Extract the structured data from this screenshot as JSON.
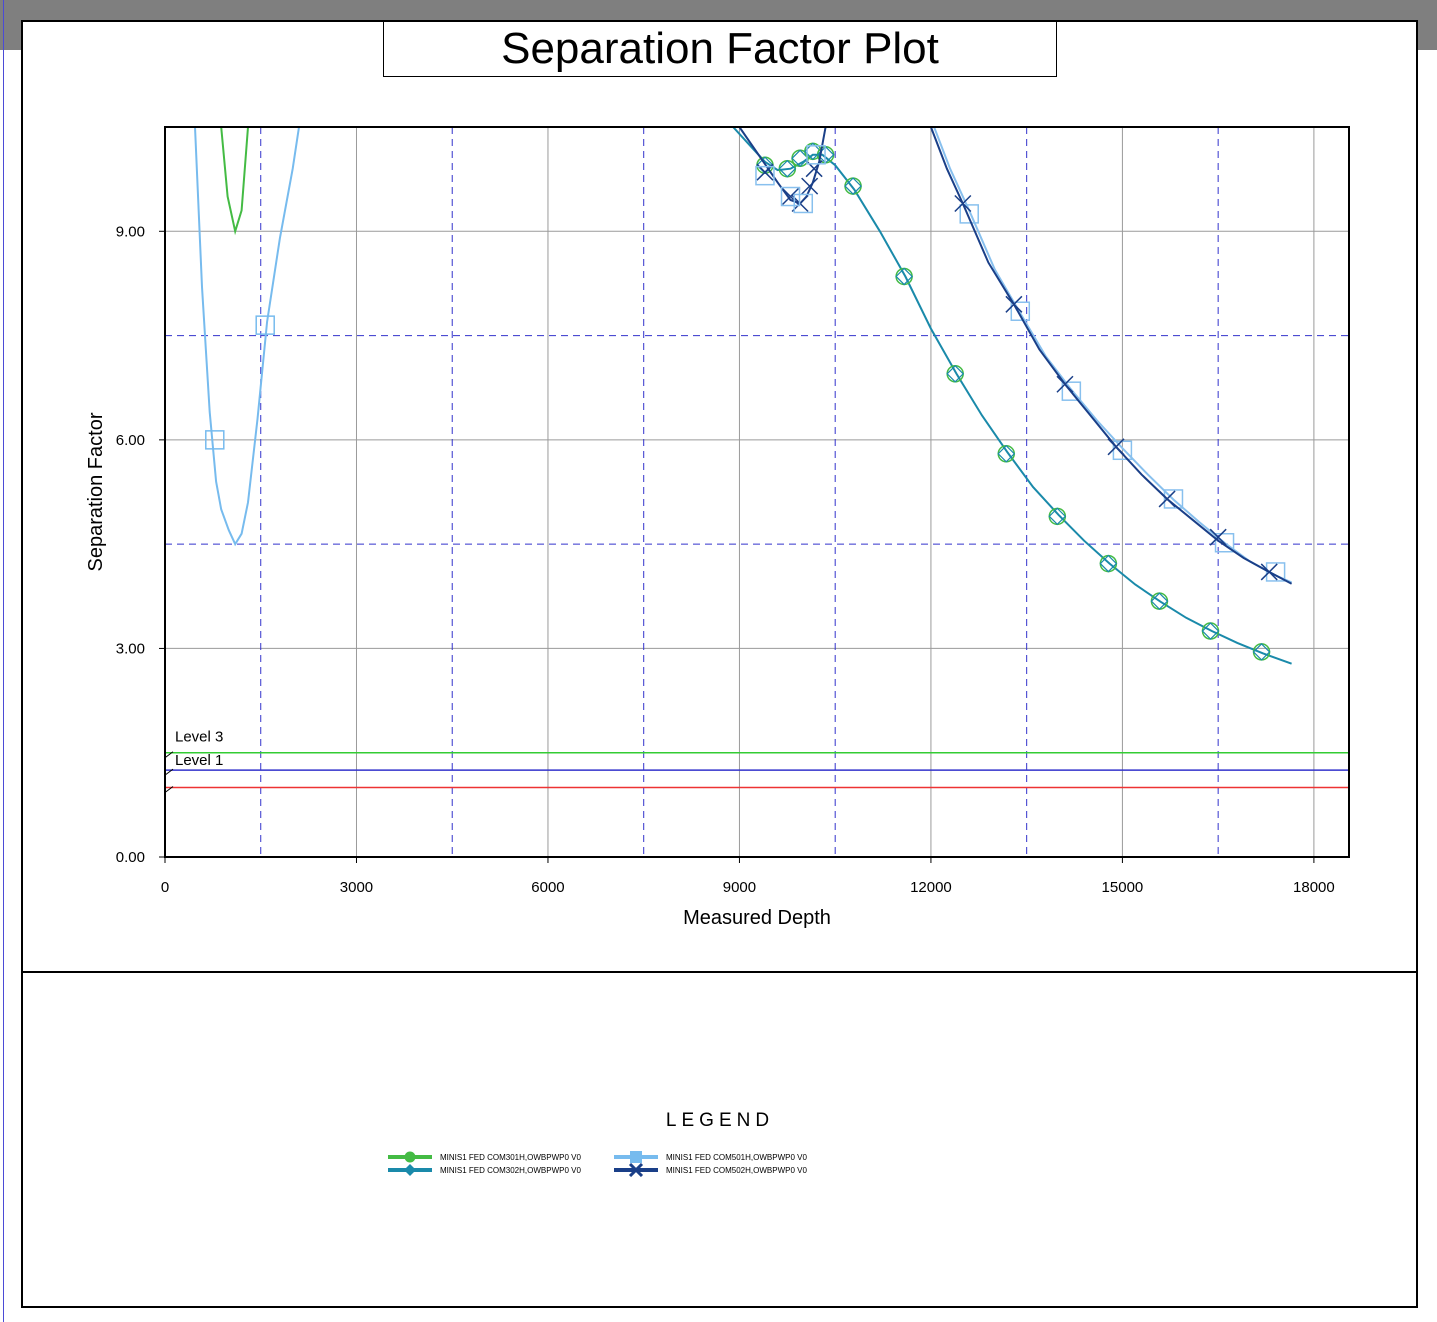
{
  "title": "Separation Factor Plot",
  "colors": {
    "grid_solid": "#9a9a9a",
    "grid_dashed": "#3333cc",
    "axis": "#000000",
    "level3": "#33cc33",
    "level1": "#3333cc",
    "level_red": "#ee3333"
  },
  "chart_data": {
    "type": "line",
    "title": "Separation Factor Plot",
    "xlabel": "Measured Depth",
    "ylabel": "Separation Factor",
    "xlim": [
      0,
      18550
    ],
    "ylim": [
      0,
      10.5
    ],
    "x_ticks": [
      0,
      3000,
      6000,
      9000,
      12000,
      15000,
      18000
    ],
    "x_tick_labels": [
      "0",
      "3000",
      "6000",
      "9000",
      "12000",
      "15000",
      "18000"
    ],
    "y_ticks": [
      0,
      3,
      6,
      9
    ],
    "y_tick_labels": [
      "0.00",
      "3.00",
      "6.00",
      "9.00"
    ],
    "grid": true,
    "dashed_x": [
      1500,
      4500,
      7500,
      10500,
      13500,
      16500
    ],
    "dashed_y": [
      4.5,
      7.5
    ],
    "levels": [
      {
        "name": "Level 3",
        "value": 1.5,
        "color": "#33cc33"
      },
      {
        "name": "Level 1",
        "value": 1.25,
        "color": "#3333cc"
      },
      {
        "name": "",
        "value": 1.0,
        "color": "#ee3333"
      }
    ],
    "series": [
      {
        "name": "MINIS1 FED COM301H,OWBPWP0 V0",
        "color": "#44bb44",
        "marker": "circle",
        "points": [
          [
            880,
            10.5
          ],
          [
            980,
            9.5
          ],
          [
            1100,
            9.0
          ],
          [
            1200,
            9.3
          ],
          [
            1300,
            10.5
          ]
        ],
        "markers": []
      },
      {
        "name": "MINIS1 FED COM501H,OWBPWP0 V0",
        "color": "#77bbee",
        "marker": "square",
        "points": [
          [
            470,
            10.5
          ],
          [
            580,
            8.2
          ],
          [
            700,
            6.4
          ],
          [
            800,
            5.4
          ],
          [
            880,
            5.0
          ],
          [
            1000,
            4.7
          ],
          [
            1100,
            4.5
          ],
          [
            1200,
            4.65
          ],
          [
            1300,
            5.1
          ],
          [
            1450,
            6.3
          ],
          [
            1600,
            7.7
          ],
          [
            1800,
            8.9
          ],
          [
            2000,
            9.9
          ],
          [
            2100,
            10.5
          ]
        ],
        "markers": [
          [
            780,
            6.0
          ],
          [
            1570,
            7.65
          ]
        ]
      },
      {
        "name": "MINIS1 FED COM302H,OWBPWP0 V0",
        "color": "#1a8aaa",
        "marker": "diamond",
        "points": [
          [
            8900,
            10.5
          ],
          [
            9200,
            10.2
          ],
          [
            9400,
            10.0
          ],
          [
            9600,
            9.88
          ],
          [
            9800,
            9.9
          ],
          [
            10000,
            10.0
          ],
          [
            10150,
            10.1
          ],
          [
            10300,
            10.1
          ],
          [
            10500,
            9.95
          ],
          [
            10800,
            9.6
          ],
          [
            11200,
            9.0
          ],
          [
            11600,
            8.35
          ],
          [
            12000,
            7.6
          ],
          [
            12400,
            6.95
          ],
          [
            12800,
            6.35
          ],
          [
            13200,
            5.82
          ],
          [
            13600,
            5.32
          ],
          [
            14000,
            4.92
          ],
          [
            14400,
            4.55
          ],
          [
            14800,
            4.22
          ],
          [
            15200,
            3.92
          ],
          [
            15600,
            3.67
          ],
          [
            16000,
            3.44
          ],
          [
            16400,
            3.25
          ],
          [
            16800,
            3.08
          ],
          [
            17200,
            2.93
          ],
          [
            17650,
            2.78
          ]
        ],
        "markers": [
          [
            9400,
            9.95
          ],
          [
            9750,
            9.9
          ],
          [
            9950,
            10.05
          ],
          [
            10150,
            10.15
          ],
          [
            10350,
            10.1
          ],
          [
            10780,
            9.65
          ],
          [
            11580,
            8.35
          ],
          [
            12380,
            6.95
          ],
          [
            13180,
            5.8
          ],
          [
            13980,
            4.9
          ],
          [
            14780,
            4.22
          ],
          [
            15580,
            3.68
          ],
          [
            16380,
            3.25
          ],
          [
            17180,
            2.95
          ]
        ]
      },
      {
        "name": "MINIS1 FED COM502H,OWBPWP0 V0",
        "color": "#1a3f88",
        "marker": "x",
        "points": [
          [
            9000,
            10.5
          ],
          [
            9300,
            10.1
          ],
          [
            9600,
            9.7
          ],
          [
            9800,
            9.45
          ],
          [
            9950,
            9.4
          ],
          [
            10050,
            9.5
          ],
          [
            10150,
            9.7
          ],
          [
            10250,
            10.0
          ],
          [
            10350,
            10.5
          ]
        ],
        "markers": [
          [
            9400,
            9.85
          ],
          [
            9800,
            9.5
          ],
          [
            9950,
            9.4
          ],
          [
            10100,
            9.65
          ],
          [
            10170,
            9.9
          ]
        ]
      },
      {
        "name": "MINIS1 FED COM501H,OWBPWP0 V0",
        "color": "#88c0ee",
        "marker": "square",
        "points": [
          [
            12050,
            10.5
          ],
          [
            12300,
            9.9
          ],
          [
            12600,
            9.3
          ],
          [
            13000,
            8.45
          ],
          [
            13400,
            7.82
          ],
          [
            13800,
            7.2
          ],
          [
            14200,
            6.72
          ],
          [
            14600,
            6.28
          ],
          [
            15000,
            5.88
          ],
          [
            15400,
            5.5
          ],
          [
            15800,
            5.14
          ],
          [
            16200,
            4.82
          ],
          [
            16600,
            4.52
          ],
          [
            17000,
            4.25
          ],
          [
            17400,
            4.05
          ],
          [
            17650,
            3.95
          ]
        ],
        "markers": [
          [
            9400,
            9.8
          ],
          [
            9800,
            9.5
          ],
          [
            10000,
            9.4
          ],
          [
            10200,
            10.1
          ],
          [
            12600,
            9.25
          ],
          [
            13400,
            7.85
          ],
          [
            14200,
            6.7
          ],
          [
            15000,
            5.85
          ],
          [
            15800,
            5.15
          ],
          [
            16600,
            4.52
          ],
          [
            17400,
            4.1
          ]
        ]
      },
      {
        "name": "MINIS1 FED COM502H,OWBPWP0 V0",
        "color": "#1a3f88",
        "marker": "x",
        "points": [
          [
            12000,
            10.5
          ],
          [
            12250,
            9.9
          ],
          [
            12500,
            9.4
          ],
          [
            12900,
            8.55
          ],
          [
            13300,
            7.95
          ],
          [
            13700,
            7.3
          ],
          [
            14100,
            6.8
          ],
          [
            14500,
            6.35
          ],
          [
            14900,
            5.9
          ],
          [
            15300,
            5.5
          ],
          [
            15700,
            5.15
          ],
          [
            16100,
            4.85
          ],
          [
            16500,
            4.55
          ],
          [
            16900,
            4.3
          ],
          [
            17300,
            4.1
          ],
          [
            17650,
            3.93
          ]
        ],
        "markers": [
          [
            12500,
            9.4
          ],
          [
            13300,
            7.95
          ],
          [
            14100,
            6.8
          ],
          [
            14900,
            5.9
          ],
          [
            15700,
            5.15
          ],
          [
            16500,
            4.6
          ],
          [
            17300,
            4.1
          ]
        ]
      }
    ]
  },
  "legend": {
    "title": "LEGEND",
    "items": [
      {
        "label": "MINIS1 FED COM301H,OWBPWP0 V0",
        "color": "#44bb44",
        "marker": "circle"
      },
      {
        "label": "MINIS1 FED COM302H,OWBPWP0 V0",
        "color": "#1a8aaa",
        "marker": "diamond"
      },
      {
        "label": "MINIS1 FED COM501H,OWBPWP0 V0",
        "color": "#77bbee",
        "marker": "square"
      },
      {
        "label": "MINIS1 FED COM502H,OWBPWP0 V0",
        "color": "#1a3f88",
        "marker": "x"
      }
    ]
  }
}
